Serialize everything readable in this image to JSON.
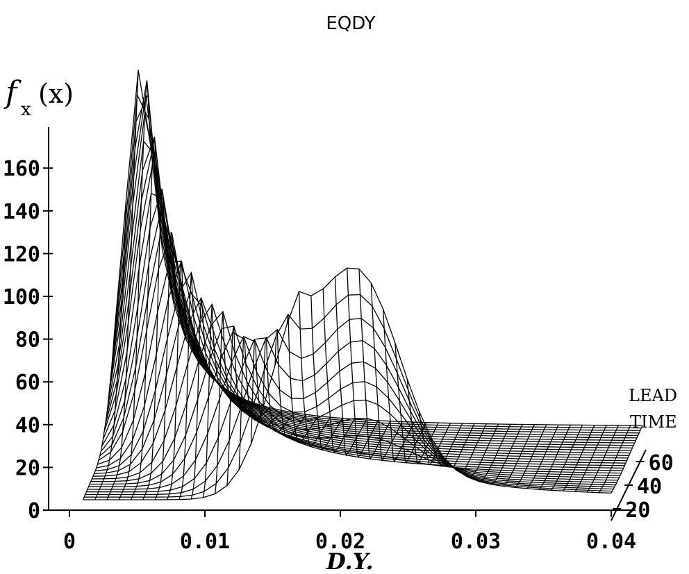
{
  "chart_data": {
    "type": "surface-3d-wireframe",
    "title": "EQDY",
    "xlabel": "D.Y.",
    "ylabel": "f_x (x)",
    "zlabel_line1": "LEAD",
    "zlabel_line2": "TIME",
    "x_ticks": [
      "0",
      "0.01",
      "0.02",
      "0.03",
      "0.04"
    ],
    "y_ticks": [
      "0",
      "20",
      "40",
      "60",
      "80",
      "100",
      "120",
      "140",
      "160"
    ],
    "z_ticks": [
      "20",
      "40",
      "60"
    ],
    "xlim": [
      0,
      0.04
    ],
    "ylim": [
      0,
      175
    ],
    "z_range": [
      10,
      70
    ],
    "series": [
      {
        "lead_time": 10,
        "peak_x": 0.017,
        "peak_density": 72
      },
      {
        "lead_time": 20,
        "peak_x": 0.0125,
        "peak_density": 74
      },
      {
        "lead_time": 30,
        "peak_x": 0.009,
        "peak_density": 85
      },
      {
        "lead_time": 40,
        "peak_x": 0.0065,
        "peak_density": 107
      },
      {
        "lead_time": 50,
        "peak_x": 0.005,
        "peak_density": 135
      },
      {
        "lead_time": 60,
        "peak_x": 0.004,
        "peak_density": 160
      },
      {
        "lead_time": 70,
        "peak_x": 0.0032,
        "peak_density": 176
      }
    ],
    "secondary_peak": {
      "x": 0.0215,
      "density": 82
    }
  }
}
